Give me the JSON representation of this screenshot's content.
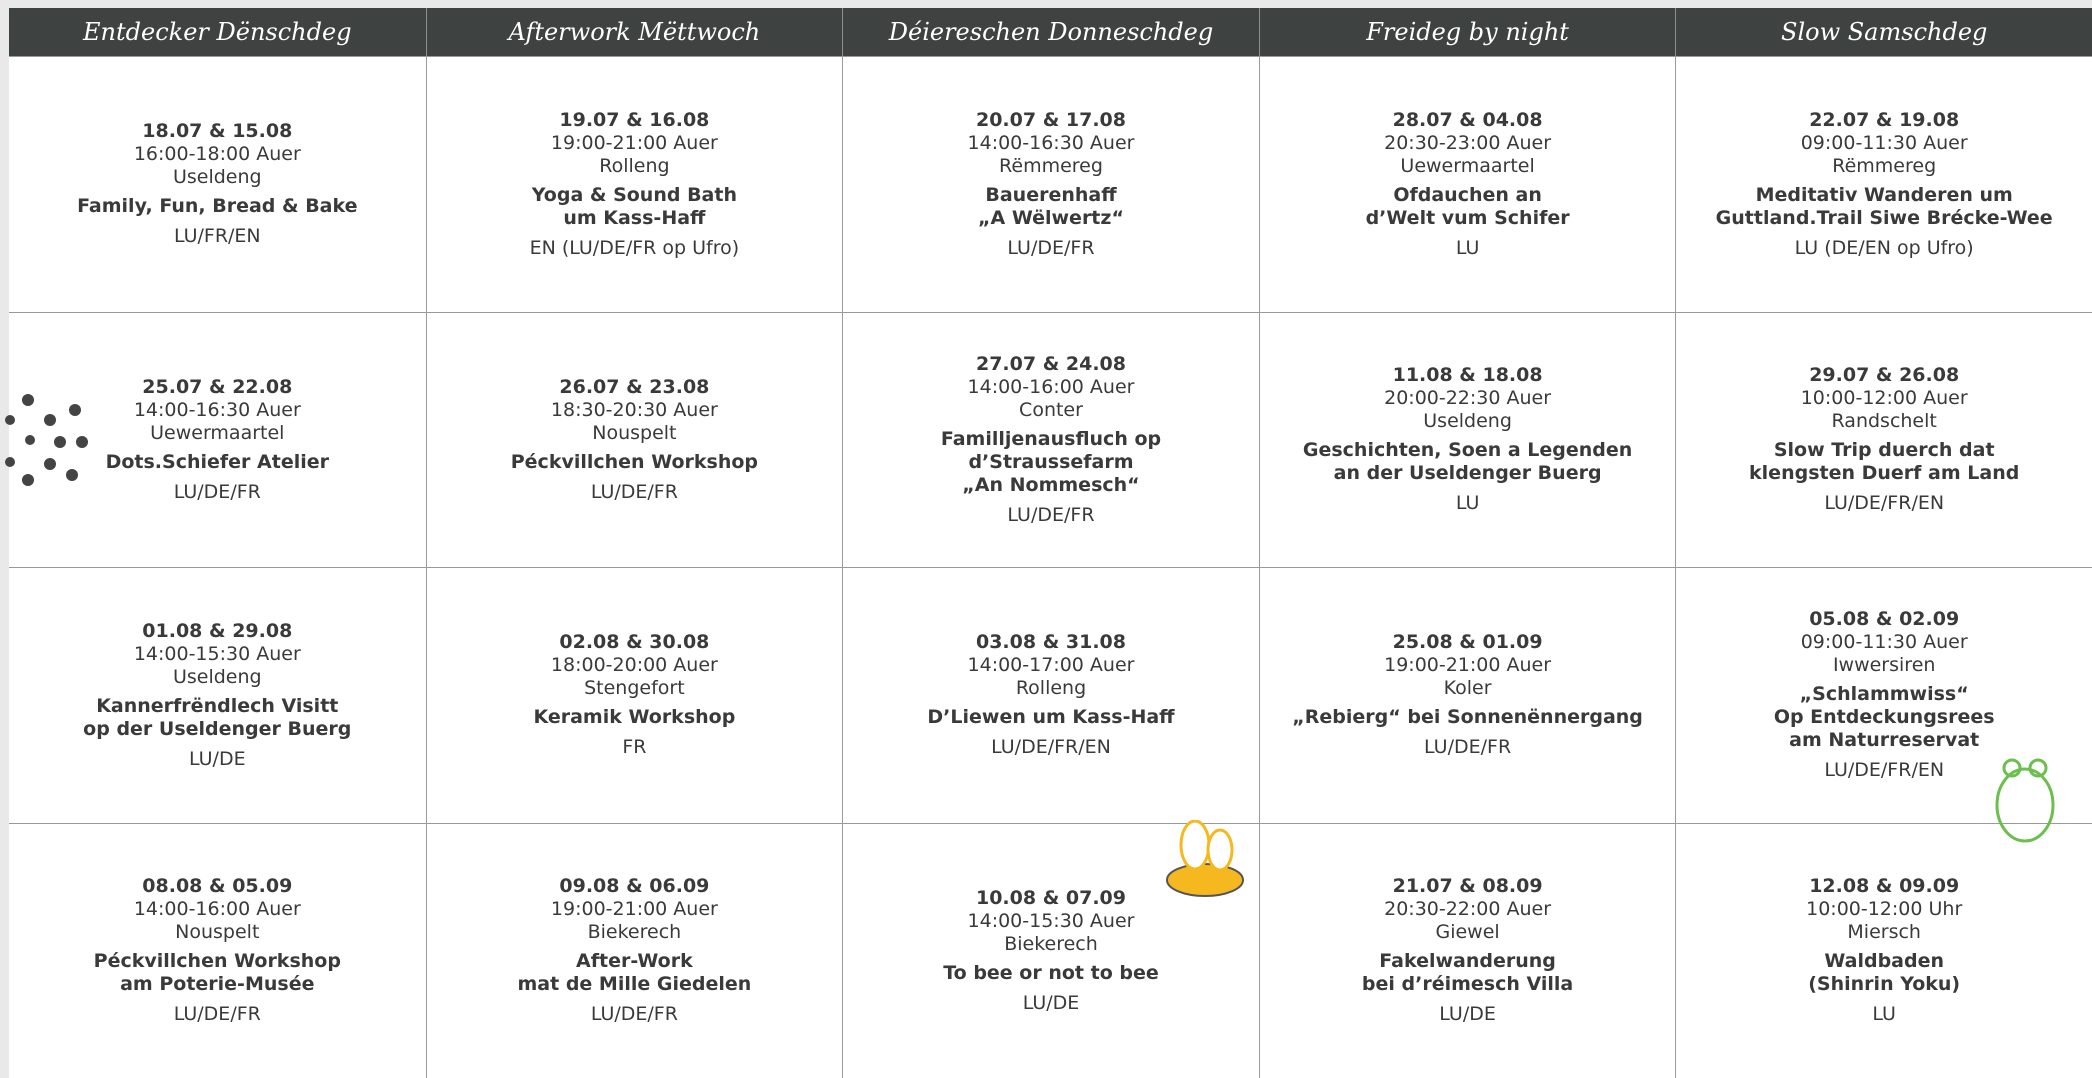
{
  "columns": [
    {
      "header": "Entdecker Dënschdeg",
      "events": [
        {
          "dates": "18.07 & 15.08",
          "time": "16:00-18:00 Auer",
          "place": "Useldeng",
          "title": [
            "Family, Fun, Bread & Bake"
          ],
          "lang": "LU/FR/EN"
        },
        {
          "dates": "25.07 & 22.08",
          "time": "14:00-16:30 Auer",
          "place": "Uewermaartel",
          "title": [
            "Dots.Schiefer Atelier"
          ],
          "lang": "LU/DE/FR"
        },
        {
          "dates": "01.08 & 29.08",
          "time": "14:00-15:30 Auer",
          "place": "Useldeng",
          "title": [
            "Kannerfrëndlech Visitt",
            "op der Useldenger Buerg"
          ],
          "lang": "LU/DE"
        },
        {
          "dates": "08.08 & 05.09",
          "time": "14:00-16:00 Auer",
          "place": "Nouspelt",
          "title": [
            "Péckvillchen Workshop",
            "am Poterie-Musée"
          ],
          "lang": "LU/DE/FR"
        }
      ]
    },
    {
      "header": "Afterwork Mëttwoch",
      "events": [
        {
          "dates": "19.07 & 16.08",
          "time": "19:00-21:00 Auer",
          "place": "Rolleng",
          "title": [
            "Yoga & Sound Bath",
            "um Kass-Haff"
          ],
          "lang": "EN (LU/DE/FR op Ufro)"
        },
        {
          "dates": "26.07 & 23.08",
          "time": "18:30-20:30 Auer",
          "place": "Nouspelt",
          "title": [
            "Péckvillchen Workshop"
          ],
          "lang": "LU/DE/FR"
        },
        {
          "dates": "02.08 & 30.08",
          "time": "18:00-20:00 Auer",
          "place": "Stengefort",
          "title": [
            "Keramik Workshop"
          ],
          "lang": "FR"
        },
        {
          "dates": "09.08 & 06.09",
          "time": "19:00-21:00 Auer",
          "place": "Biekerech",
          "title": [
            "After-Work",
            "mat de Mille Giedelen"
          ],
          "lang": "LU/DE/FR"
        }
      ]
    },
    {
      "header": "Déiereschen Donneschdeg",
      "events": [
        {
          "dates": "20.07 & 17.08",
          "time": "14:00-16:30 Auer",
          "place": "Rëmmereg",
          "title": [
            "Bauerenhaff",
            "„A Wëlwertz“"
          ],
          "lang": "LU/DE/FR"
        },
        {
          "dates": "27.07 & 24.08",
          "time": "14:00-16:00 Auer",
          "place": "Conter",
          "title": [
            "Familljenausfluch op",
            "d’Straussefarm",
            "„An Nommesch“"
          ],
          "lang": "LU/DE/FR"
        },
        {
          "dates": "03.08 & 31.08",
          "time": "14:00-17:00 Auer",
          "place": "Rolleng",
          "title": [
            "D’Liewen um Kass-Haff"
          ],
          "lang": "LU/DE/FR/EN"
        },
        {
          "dates": "10.08 & 07.09",
          "time": "14:00-15:30 Auer",
          "place": "Biekerech",
          "title": [
            "To bee or not to bee"
          ],
          "lang": "LU/DE"
        }
      ]
    },
    {
      "header": "Freideg by night",
      "events": [
        {
          "dates": "28.07 & 04.08",
          "time": "20:30-23:00 Auer",
          "place": "Uewermaartel",
          "title": [
            "Ofdauchen an",
            "d’Welt vum Schifer"
          ],
          "lang": "LU"
        },
        {
          "dates": "11.08 & 18.08",
          "time": "20:00-22:30 Auer",
          "place": "Useldeng",
          "title": [
            "Geschichten, Soen a Legenden",
            "an der Useldenger Buerg"
          ],
          "lang": "LU"
        },
        {
          "dates": "25.08 & 01.09",
          "time": "19:00-21:00 Auer",
          "place": "Koler",
          "title": [
            "„Rebierg“ bei Sonnenënnergang"
          ],
          "lang": "LU/DE/FR"
        },
        {
          "dates": "21.07 & 08.09",
          "time": "20:30-22:00 Auer",
          "place": "Giewel",
          "title": [
            "Fakelwanderung",
            "bei d’réimesch Villa"
          ],
          "lang": "LU/DE"
        }
      ]
    },
    {
      "header": "Slow Samschdeg",
      "events": [
        {
          "dates": "22.07 & 19.08",
          "time": "09:00-11:30 Auer",
          "place": "Rëmmereg",
          "title": [
            "Meditativ Wanderen um",
            "Guttland.Trail Siwe Brécke-Wee"
          ],
          "lang": "LU (DE/EN op Ufro)"
        },
        {
          "dates": "29.07 & 26.08",
          "time": "10:00-12:00 Auer",
          "place": "Randschelt",
          "title": [
            "Slow Trip duerch dat",
            "klengsten Duerf am Land"
          ],
          "lang": "LU/DE/FR/EN"
        },
        {
          "dates": "05.08 & 02.09",
          "time": "09:00-11:30 Auer",
          "place": "Iwwersiren",
          "title": [
            "„Schlammwiss“",
            "Op Entdeckungsrees",
            "am Naturreservat"
          ],
          "lang": "LU/DE/FR/EN"
        },
        {
          "dates": "12.08 & 09.09",
          "time": "10:00-12:00 Uhr",
          "place": "Miersch",
          "title": [
            "Waldbaden",
            "(Shinrin Yoku)"
          ],
          "lang": "LU"
        }
      ]
    }
  ]
}
